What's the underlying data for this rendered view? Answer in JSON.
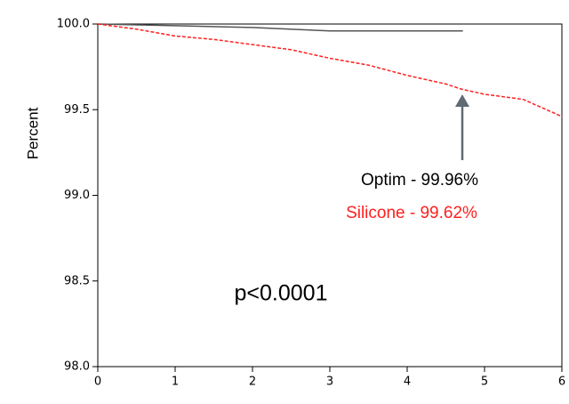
{
  "chart_data": {
    "type": "line",
    "y_label": "Percent",
    "xlim": [
      0,
      6
    ],
    "xticks": [
      0,
      1,
      2,
      3,
      4,
      5,
      6
    ],
    "ylim": [
      98,
      100
    ],
    "yticks": [
      {
        "value": 98,
        "label": "98.0"
      },
      98.5,
      {
        "value": 99,
        "label": "99.0"
      },
      99.5,
      {
        "value": 100,
        "label": "100.0"
      }
    ],
    "series": [
      {
        "color": "#555555",
        "style": "solid",
        "x": [
          0,
          1,
          2,
          3,
          4.72
        ],
        "values": [
          100,
          99.99,
          99.98,
          99.96,
          99.96
        ]
      },
      {
        "color": "#ff2020",
        "style": "dashed",
        "x": [
          0,
          0.5,
          1,
          1.5,
          2,
          2.5,
          3,
          3.5,
          4,
          4.5,
          4.7,
          5,
          5.5,
          6
        ],
        "values": [
          100,
          99.97,
          99.93,
          99.91,
          99.88,
          99.85,
          99.8,
          99.76,
          99.7,
          99.65,
          99.62,
          99.59,
          99.56,
          99.46
        ]
      }
    ],
    "annotations": [
      "Optim - 99.96%",
      "Silicone - 99.62%",
      "p<0.0001"
    ]
  }
}
